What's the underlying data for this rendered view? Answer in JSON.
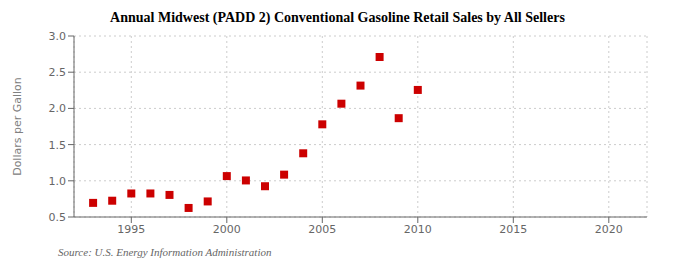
{
  "chart_data": {
    "type": "scatter",
    "title": "Annual Midwest (PADD 2) Conventional Gasoline Retail Sales by All Sellers",
    "ylabel": "Dollars per Gallon",
    "annotation": "Source: U.S. Energy Information Administration",
    "x": [
      1993,
      1994,
      1995,
      1996,
      1997,
      1998,
      1999,
      2000,
      2001,
      2002,
      2003,
      2004,
      2005,
      2006,
      2007,
      2008,
      2009,
      2010
    ],
    "values": [
      0.695,
      0.725,
      0.825,
      0.825,
      0.805,
      0.625,
      0.715,
      1.065,
      1.005,
      0.925,
      1.085,
      1.38,
      1.78,
      2.065,
      2.315,
      2.71,
      1.865,
      2.255
    ],
    "color": "#cc0000",
    "marker": "square",
    "xlim": [
      1992,
      2022
    ],
    "ylim": [
      0.5,
      3.0
    ],
    "xticks": [
      1995,
      2000,
      2005,
      2010,
      2015,
      2020
    ],
    "yticks": [
      0.5,
      {
        "value": 1.0,
        "label": "1.0"
      },
      1.5,
      {
        "value": 2.0,
        "label": "2.0"
      },
      2.5,
      {
        "value": 3.0,
        "label": "3.0"
      }
    ],
    "grid": true
  }
}
